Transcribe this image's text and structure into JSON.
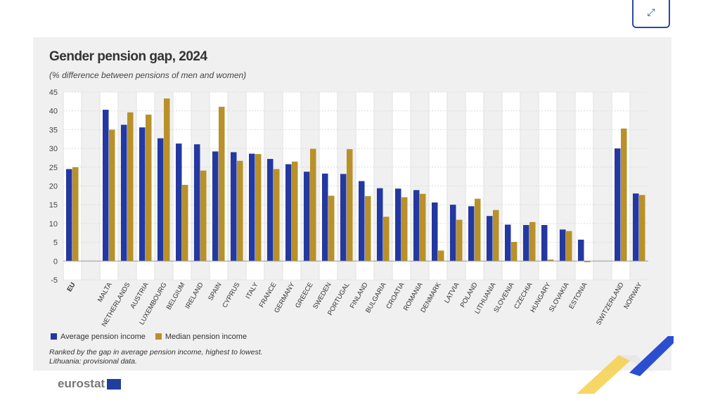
{
  "expand_button": {
    "icon": "expand-icon",
    "glyph": "⤢"
  },
  "chart_data": {
    "type": "bar",
    "title": "Gender pension gap, 2024",
    "subtitle": "(% difference between pensions of men and women)",
    "categories": [
      "EU",
      "",
      "MALTA",
      "NETHERLANDS",
      "AUSTRIA",
      "LUXEMBOURG",
      "BELGIUM",
      "IRELAND",
      "SPAIN",
      "CYPRUS",
      "ITALY",
      "FRANCE",
      "GERMANY",
      "GREECE",
      "SWEDEN",
      "PORTUGAL",
      "FINLAND",
      "BULGARIA",
      "CROATIA",
      "ROMANIA",
      "DENMARK",
      "LATVIA",
      "POLAND",
      "LITHUANIA",
      "SLOVENIA",
      "CZECHIA",
      "HUNGARY",
      "SLOVAKIA",
      "ESTONIA",
      "",
      "SWITZERLAND",
      "NORWAY"
    ],
    "series": [
      {
        "name": "Average pension income",
        "color": "#2338a0",
        "values": [
          24.5,
          null,
          40.3,
          36.3,
          35.6,
          32.7,
          31.3,
          31.1,
          29.2,
          29.0,
          28.6,
          27.2,
          25.8,
          23.8,
          23.3,
          23.2,
          21.3,
          19.4,
          19.3,
          18.9,
          15.6,
          15.0,
          14.6,
          12.0,
          9.7,
          9.6,
          9.6,
          8.4,
          5.7,
          null,
          30.0,
          18.0
        ]
      },
      {
        "name": "Median pension income",
        "color": "#b8912a",
        "values": [
          25.0,
          null,
          35.0,
          39.6,
          39.0,
          43.3,
          20.3,
          24.1,
          41.1,
          26.7,
          28.5,
          24.5,
          26.5,
          29.9,
          17.4,
          29.8,
          17.3,
          11.8,
          17.0,
          17.9,
          2.8,
          11.0,
          16.6,
          13.6,
          5.1,
          10.4,
          0.4,
          8.0,
          -0.3,
          null,
          35.3,
          17.6
        ]
      }
    ],
    "ylim": [
      -5,
      45
    ],
    "yticks": [
      -5,
      0,
      5,
      10,
      15,
      20,
      25,
      30,
      35,
      40,
      45
    ],
    "grid": true,
    "legend": "bottom-left",
    "notes": [
      "Ranked by the gap in average pension income, highest to lowest.",
      "Lithuania: provisional data."
    ]
  },
  "logo": {
    "text": "eurostat"
  }
}
